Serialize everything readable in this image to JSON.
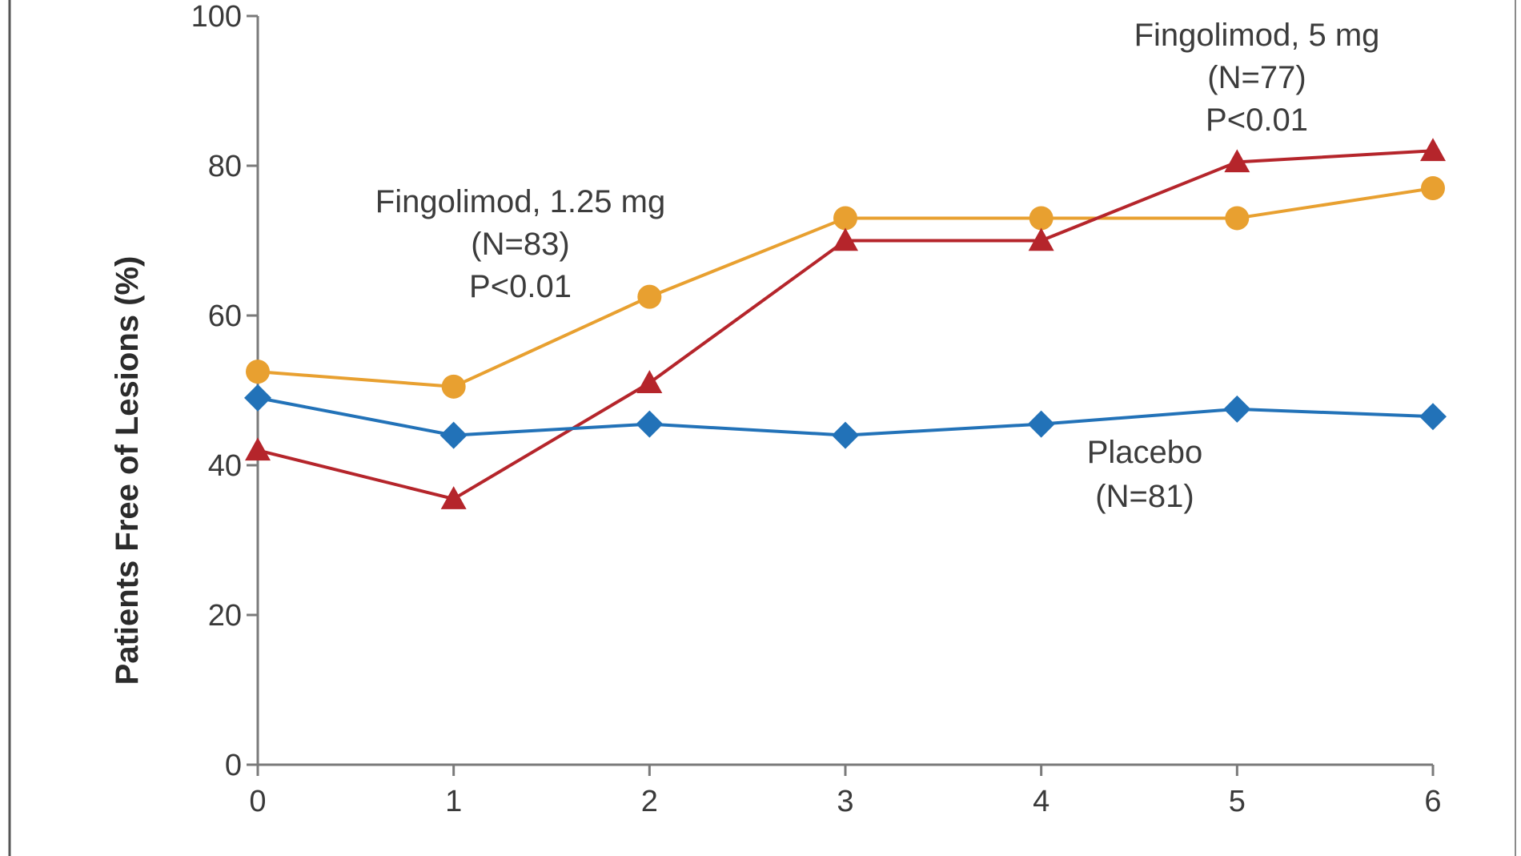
{
  "chart_data": {
    "type": "line",
    "title": "",
    "xlabel": "",
    "ylabel": "Patients Free of Lesions (%)",
    "xlim": [
      0,
      6
    ],
    "ylim": [
      0,
      100
    ],
    "x_ticks": [
      "0",
      "1",
      "2",
      "3",
      "4",
      "5",
      "6"
    ],
    "y_ticks": [
      "0",
      "20",
      "40",
      "60",
      "80",
      "100"
    ],
    "grid": false,
    "x": [
      0,
      1,
      2,
      3,
      4,
      5,
      6
    ],
    "series": [
      {
        "name": "Fingolimod, 1.25 mg",
        "n_label": "(N=83)",
        "p_label": "P<0.01",
        "color": "#E8A030",
        "marker": "circle",
        "values": [
          52.5,
          50.5,
          62.5,
          73.0,
          73.0,
          73.0,
          77.0
        ]
      },
      {
        "name": "Fingolimod, 5 mg",
        "n_label": "(N=77)",
        "p_label": "P<0.01",
        "color": "#B5252B",
        "marker": "triangle",
        "values": [
          42.0,
          35.5,
          51.0,
          70.0,
          70.0,
          80.5,
          82.0
        ]
      },
      {
        "name": "Placebo",
        "n_label": "(N=81)",
        "p_label": "",
        "color": "#2272B8",
        "marker": "diamond",
        "values": [
          49.0,
          44.0,
          45.5,
          44.0,
          45.5,
          47.5,
          46.5
        ]
      }
    ]
  }
}
